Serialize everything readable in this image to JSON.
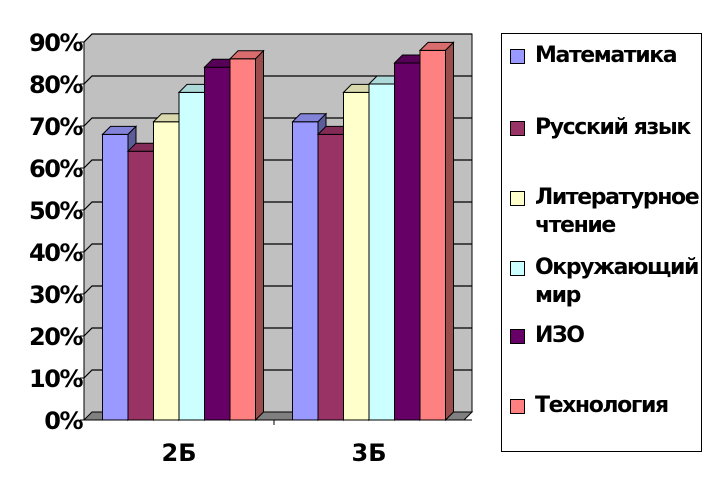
{
  "chart_data": {
    "type": "bar",
    "categories": [
      "2Б",
      "3Б"
    ],
    "yticks": [
      "0%",
      "10%",
      "20%",
      "30%",
      "40%",
      "50%",
      "60%",
      "70%",
      "80%",
      "90%"
    ],
    "ylim": [
      0,
      90
    ],
    "grid": true,
    "legend_position": "right",
    "series": [
      {
        "name": "Математика",
        "values": [
          68,
          71
        ],
        "color": "#9999FF"
      },
      {
        "name": "Русский язык",
        "values": [
          64,
          68
        ],
        "color": "#993366"
      },
      {
        "name": "Литературное чтение",
        "values": [
          71,
          78
        ],
        "color": "#FFFFCC"
      },
      {
        "name": "Окружающий мир",
        "values": [
          78,
          80
        ],
        "color": "#CCFFFF"
      },
      {
        "name": "ИЗО",
        "values": [
          84,
          85
        ],
        "color": "#660066"
      },
      {
        "name": "Технология",
        "values": [
          86,
          88
        ],
        "color": "#FF8080"
      }
    ]
  }
}
